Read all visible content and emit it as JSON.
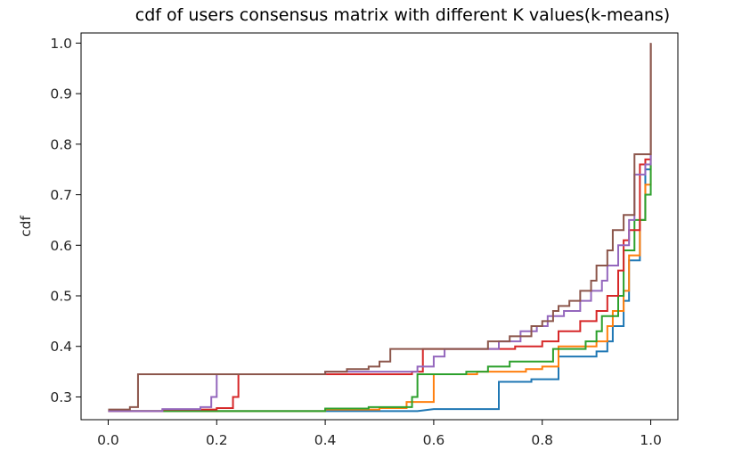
{
  "chart_data": {
    "type": "line",
    "title": "cdf of users consensus matrix with different K values(k-means)",
    "xlabel": "",
    "ylabel": "cdf",
    "xlim": [
      -0.05,
      1.05
    ],
    "ylim": [
      0.255,
      1.02
    ],
    "xticks": [
      "0.0",
      "0.2",
      "0.4",
      "0.6",
      "0.8",
      "1.0"
    ],
    "yticks": [
      "0.3",
      "0.4",
      "0.5",
      "0.6",
      "0.7",
      "0.8",
      "0.9",
      "1.0"
    ],
    "grid": false,
    "legend": "none",
    "step": true,
    "series": [
      {
        "color": "#1f77b4",
        "points": [
          [
            0.0,
            0.272
          ],
          [
            0.1,
            0.272
          ],
          [
            0.4,
            0.272
          ],
          [
            0.57,
            0.272
          ],
          [
            0.6,
            0.276
          ],
          [
            0.72,
            0.276
          ],
          [
            0.72,
            0.29
          ],
          [
            0.72,
            0.33
          ],
          [
            0.78,
            0.33
          ],
          [
            0.78,
            0.335
          ],
          [
            0.83,
            0.335
          ],
          [
            0.83,
            0.38
          ],
          [
            0.9,
            0.38
          ],
          [
            0.9,
            0.39
          ],
          [
            0.92,
            0.39
          ],
          [
            0.92,
            0.41
          ],
          [
            0.93,
            0.41
          ],
          [
            0.93,
            0.44
          ],
          [
            0.95,
            0.44
          ],
          [
            0.95,
            0.49
          ],
          [
            0.96,
            0.49
          ],
          [
            0.96,
            0.57
          ],
          [
            0.98,
            0.57
          ],
          [
            0.98,
            0.65
          ],
          [
            0.99,
            0.65
          ],
          [
            0.99,
            0.75
          ],
          [
            1.0,
            0.75
          ],
          [
            1.0,
            1.0
          ]
        ]
      },
      {
        "color": "#ff7f0e",
        "points": [
          [
            0.0,
            0.272
          ],
          [
            0.2,
            0.272
          ],
          [
            0.4,
            0.272
          ],
          [
            0.4,
            0.275
          ],
          [
            0.5,
            0.275
          ],
          [
            0.5,
            0.278
          ],
          [
            0.55,
            0.278
          ],
          [
            0.55,
            0.29
          ],
          [
            0.6,
            0.29
          ],
          [
            0.6,
            0.345
          ],
          [
            0.68,
            0.345
          ],
          [
            0.68,
            0.35
          ],
          [
            0.77,
            0.35
          ],
          [
            0.77,
            0.355
          ],
          [
            0.8,
            0.355
          ],
          [
            0.8,
            0.36
          ],
          [
            0.83,
            0.36
          ],
          [
            0.83,
            0.4
          ],
          [
            0.9,
            0.4
          ],
          [
            0.9,
            0.41
          ],
          [
            0.92,
            0.41
          ],
          [
            0.92,
            0.44
          ],
          [
            0.93,
            0.44
          ],
          [
            0.93,
            0.47
          ],
          [
            0.95,
            0.47
          ],
          [
            0.95,
            0.51
          ],
          [
            0.96,
            0.51
          ],
          [
            0.96,
            0.58
          ],
          [
            0.98,
            0.58
          ],
          [
            0.98,
            0.65
          ],
          [
            0.99,
            0.65
          ],
          [
            0.99,
            0.72
          ],
          [
            1.0,
            0.72
          ],
          [
            1.0,
            1.0
          ]
        ]
      },
      {
        "color": "#2ca02c",
        "points": [
          [
            0.0,
            0.272
          ],
          [
            0.2,
            0.272
          ],
          [
            0.4,
            0.272
          ],
          [
            0.4,
            0.277
          ],
          [
            0.48,
            0.277
          ],
          [
            0.48,
            0.28
          ],
          [
            0.56,
            0.28
          ],
          [
            0.56,
            0.3
          ],
          [
            0.57,
            0.3
          ],
          [
            0.57,
            0.345
          ],
          [
            0.66,
            0.345
          ],
          [
            0.66,
            0.35
          ],
          [
            0.7,
            0.35
          ],
          [
            0.7,
            0.36
          ],
          [
            0.74,
            0.36
          ],
          [
            0.74,
            0.37
          ],
          [
            0.82,
            0.37
          ],
          [
            0.82,
            0.395
          ],
          [
            0.88,
            0.395
          ],
          [
            0.88,
            0.41
          ],
          [
            0.9,
            0.41
          ],
          [
            0.9,
            0.43
          ],
          [
            0.91,
            0.43
          ],
          [
            0.91,
            0.46
          ],
          [
            0.94,
            0.46
          ],
          [
            0.94,
            0.5
          ],
          [
            0.95,
            0.5
          ],
          [
            0.95,
            0.59
          ],
          [
            0.97,
            0.59
          ],
          [
            0.97,
            0.65
          ],
          [
            0.99,
            0.65
          ],
          [
            0.99,
            0.7
          ],
          [
            1.0,
            0.7
          ],
          [
            1.0,
            1.0
          ]
        ]
      },
      {
        "color": "#d62728",
        "points": [
          [
            0.0,
            0.272
          ],
          [
            0.1,
            0.272
          ],
          [
            0.1,
            0.275
          ],
          [
            0.2,
            0.275
          ],
          [
            0.2,
            0.278
          ],
          [
            0.23,
            0.278
          ],
          [
            0.23,
            0.3
          ],
          [
            0.24,
            0.3
          ],
          [
            0.24,
            0.345
          ],
          [
            0.56,
            0.345
          ],
          [
            0.56,
            0.35
          ],
          [
            0.58,
            0.35
          ],
          [
            0.58,
            0.395
          ],
          [
            0.75,
            0.395
          ],
          [
            0.75,
            0.4
          ],
          [
            0.8,
            0.4
          ],
          [
            0.8,
            0.41
          ],
          [
            0.83,
            0.41
          ],
          [
            0.83,
            0.43
          ],
          [
            0.87,
            0.43
          ],
          [
            0.87,
            0.45
          ],
          [
            0.9,
            0.45
          ],
          [
            0.9,
            0.47
          ],
          [
            0.92,
            0.47
          ],
          [
            0.92,
            0.5
          ],
          [
            0.94,
            0.5
          ],
          [
            0.94,
            0.55
          ],
          [
            0.95,
            0.55
          ],
          [
            0.95,
            0.61
          ],
          [
            0.96,
            0.61
          ],
          [
            0.96,
            0.63
          ],
          [
            0.98,
            0.63
          ],
          [
            0.98,
            0.76
          ],
          [
            0.99,
            0.76
          ],
          [
            0.99,
            0.77
          ],
          [
            1.0,
            0.77
          ],
          [
            1.0,
            1.0
          ]
        ]
      },
      {
        "color": "#9467bd",
        "points": [
          [
            0.0,
            0.272
          ],
          [
            0.1,
            0.272
          ],
          [
            0.1,
            0.276
          ],
          [
            0.17,
            0.276
          ],
          [
            0.17,
            0.28
          ],
          [
            0.19,
            0.28
          ],
          [
            0.19,
            0.3
          ],
          [
            0.2,
            0.3
          ],
          [
            0.2,
            0.345
          ],
          [
            0.4,
            0.345
          ],
          [
            0.4,
            0.35
          ],
          [
            0.57,
            0.35
          ],
          [
            0.57,
            0.36
          ],
          [
            0.6,
            0.36
          ],
          [
            0.6,
            0.38
          ],
          [
            0.62,
            0.38
          ],
          [
            0.62,
            0.395
          ],
          [
            0.72,
            0.395
          ],
          [
            0.72,
            0.41
          ],
          [
            0.76,
            0.41
          ],
          [
            0.76,
            0.43
          ],
          [
            0.79,
            0.43
          ],
          [
            0.79,
            0.44
          ],
          [
            0.81,
            0.44
          ],
          [
            0.81,
            0.46
          ],
          [
            0.84,
            0.46
          ],
          [
            0.84,
            0.47
          ],
          [
            0.87,
            0.47
          ],
          [
            0.87,
            0.49
          ],
          [
            0.89,
            0.49
          ],
          [
            0.89,
            0.51
          ],
          [
            0.91,
            0.51
          ],
          [
            0.91,
            0.53
          ],
          [
            0.92,
            0.53
          ],
          [
            0.92,
            0.56
          ],
          [
            0.94,
            0.56
          ],
          [
            0.94,
            0.6
          ],
          [
            0.96,
            0.6
          ],
          [
            0.96,
            0.65
          ],
          [
            0.97,
            0.65
          ],
          [
            0.97,
            0.74
          ],
          [
            0.99,
            0.74
          ],
          [
            0.99,
            0.76
          ],
          [
            1.0,
            0.76
          ],
          [
            1.0,
            1.0
          ]
        ]
      },
      {
        "color": "#8c564b",
        "points": [
          [
            0.0,
            0.275
          ],
          [
            0.04,
            0.275
          ],
          [
            0.04,
            0.28
          ],
          [
            0.055,
            0.28
          ],
          [
            0.055,
            0.345
          ],
          [
            0.4,
            0.345
          ],
          [
            0.4,
            0.35
          ],
          [
            0.44,
            0.35
          ],
          [
            0.44,
            0.355
          ],
          [
            0.48,
            0.355
          ],
          [
            0.48,
            0.36
          ],
          [
            0.5,
            0.36
          ],
          [
            0.5,
            0.37
          ],
          [
            0.52,
            0.37
          ],
          [
            0.52,
            0.395
          ],
          [
            0.7,
            0.395
          ],
          [
            0.7,
            0.41
          ],
          [
            0.74,
            0.41
          ],
          [
            0.74,
            0.42
          ],
          [
            0.78,
            0.42
          ],
          [
            0.78,
            0.44
          ],
          [
            0.8,
            0.44
          ],
          [
            0.8,
            0.45
          ],
          [
            0.82,
            0.45
          ],
          [
            0.82,
            0.47
          ],
          [
            0.83,
            0.47
          ],
          [
            0.83,
            0.48
          ],
          [
            0.85,
            0.48
          ],
          [
            0.85,
            0.49
          ],
          [
            0.87,
            0.49
          ],
          [
            0.87,
            0.51
          ],
          [
            0.89,
            0.51
          ],
          [
            0.89,
            0.53
          ],
          [
            0.9,
            0.53
          ],
          [
            0.9,
            0.56
          ],
          [
            0.92,
            0.56
          ],
          [
            0.92,
            0.59
          ],
          [
            0.93,
            0.59
          ],
          [
            0.93,
            0.63
          ],
          [
            0.95,
            0.63
          ],
          [
            0.95,
            0.66
          ],
          [
            0.97,
            0.66
          ],
          [
            0.97,
            0.78
          ],
          [
            0.99,
            0.78
          ],
          [
            0.99,
            0.78
          ],
          [
            1.0,
            0.78
          ],
          [
            1.0,
            1.0
          ]
        ]
      }
    ]
  }
}
